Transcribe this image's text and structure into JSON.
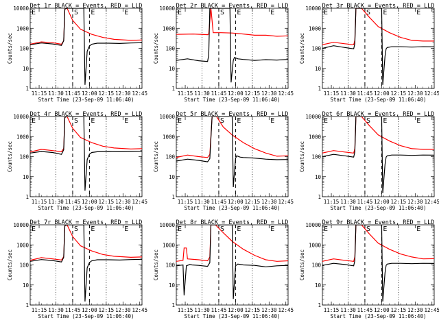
{
  "chart_data": {
    "type": "line",
    "yscale": "log",
    "ylim": [
      1,
      10000
    ],
    "xlim_minutes": [
      0,
      100
    ],
    "common": {
      "ylabel": "Counts/sec",
      "xlabel": "Start Time (23-Sep-09 11:06:40)",
      "x_tick_labels": [
        "11:15",
        "11:30",
        "11:45",
        "12:00",
        "12:15",
        "12:30",
        "12:45"
      ],
      "y_tick_labels": [
        "1",
        "10",
        "100",
        "1000",
        "10000"
      ],
      "marker_S": "S",
      "marker_E": "E",
      "grid": false
    },
    "series_colors": {
      "events": "#000000",
      "lld": "#ff0000"
    },
    "panels": [
      {
        "id": "1r",
        "title": "Det 1r BLACK = Events, RED = LLD",
        "events": [
          [
            0,
            150
          ],
          [
            10,
            185
          ],
          [
            20,
            165
          ],
          [
            28,
            140
          ],
          [
            30,
            240
          ],
          [
            31,
            9000
          ],
          [
            33,
            10000
          ],
          [
            40,
            10000
          ],
          [
            48,
            10000
          ],
          [
            49,
            1.5
          ],
          [
            51,
            70
          ],
          [
            52,
            100
          ],
          [
            53,
            130
          ],
          [
            55,
            160
          ],
          [
            60,
            180
          ],
          [
            70,
            180
          ],
          [
            80,
            175
          ],
          [
            90,
            185
          ],
          [
            100,
            190
          ]
        ],
        "lld": [
          [
            0,
            160
          ],
          [
            10,
            210
          ],
          [
            20,
            190
          ],
          [
            28,
            160
          ],
          [
            30,
            240
          ],
          [
            31,
            9000
          ],
          [
            33,
            10000
          ],
          [
            38,
            2500
          ],
          [
            45,
            900
          ],
          [
            55,
            500
          ],
          [
            65,
            350
          ],
          [
            75,
            280
          ],
          [
            90,
            250
          ],
          [
            100,
            260
          ]
        ]
      },
      {
        "id": "2r",
        "title": "Det 2r BLACK = Events, RED = LLD",
        "events": [
          [
            0,
            25
          ],
          [
            10,
            30
          ],
          [
            20,
            24
          ],
          [
            28,
            22
          ],
          [
            29,
            45
          ],
          [
            30,
            10000
          ],
          [
            32,
            10000
          ],
          [
            40,
            10000
          ],
          [
            48,
            10000
          ],
          [
            49,
            2
          ],
          [
            51,
            25
          ],
          [
            52,
            35
          ],
          [
            55,
            30
          ],
          [
            60,
            28
          ],
          [
            70,
            25
          ],
          [
            80,
            27
          ],
          [
            90,
            26
          ],
          [
            100,
            28
          ]
        ],
        "lld": [
          [
            0,
            500
          ],
          [
            15,
            520
          ],
          [
            28,
            480
          ],
          [
            29,
            520
          ],
          [
            31,
            10000
          ],
          [
            33,
            600
          ],
          [
            40,
            600
          ],
          [
            50,
            580
          ],
          [
            60,
            520
          ],
          [
            70,
            450
          ],
          [
            80,
            450
          ],
          [
            90,
            400
          ],
          [
            100,
            420
          ]
        ]
      },
      {
        "id": "3r",
        "title": "Det 3r BLACK = Events, RED = LLD",
        "events": [
          [
            0,
            100
          ],
          [
            10,
            135
          ],
          [
            20,
            110
          ],
          [
            28,
            95
          ],
          [
            29,
            170
          ],
          [
            30,
            10000
          ],
          [
            32,
            10000
          ],
          [
            40,
            10000
          ],
          [
            53,
            10000
          ],
          [
            54,
            1.5
          ],
          [
            56,
            40
          ],
          [
            57,
            95
          ],
          [
            58,
            110
          ],
          [
            62,
            120
          ],
          [
            70,
            120
          ],
          [
            80,
            115
          ],
          [
            90,
            120
          ],
          [
            100,
            118
          ]
        ],
        "lld": [
          [
            0,
            150
          ],
          [
            10,
            200
          ],
          [
            20,
            170
          ],
          [
            28,
            150
          ],
          [
            29,
            250
          ],
          [
            30,
            10000
          ],
          [
            35,
            10000
          ],
          [
            42,
            3500
          ],
          [
            50,
            1200
          ],
          [
            60,
            600
          ],
          [
            70,
            350
          ],
          [
            80,
            250
          ],
          [
            90,
            230
          ],
          [
            100,
            230
          ]
        ]
      },
      {
        "id": "4r",
        "title": "Det 4r BLACK = Events, RED = LLD",
        "events": [
          [
            0,
            150
          ],
          [
            10,
            180
          ],
          [
            20,
            160
          ],
          [
            28,
            130
          ],
          [
            30,
            220
          ],
          [
            31,
            9000
          ],
          [
            33,
            10000
          ],
          [
            40,
            10000
          ],
          [
            48,
            10000
          ],
          [
            49,
            2
          ],
          [
            51,
            70
          ],
          [
            52,
            100
          ],
          [
            53,
            130
          ],
          [
            55,
            160
          ],
          [
            60,
            175
          ],
          [
            70,
            180
          ],
          [
            80,
            175
          ],
          [
            90,
            180
          ],
          [
            100,
            185
          ]
        ],
        "lld": [
          [
            0,
            170
          ],
          [
            10,
            230
          ],
          [
            20,
            200
          ],
          [
            28,
            175
          ],
          [
            30,
            260
          ],
          [
            31,
            9000
          ],
          [
            33,
            10000
          ],
          [
            38,
            2600
          ],
          [
            45,
            900
          ],
          [
            55,
            500
          ],
          [
            65,
            330
          ],
          [
            75,
            270
          ],
          [
            90,
            240
          ],
          [
            100,
            250
          ]
        ]
      },
      {
        "id": "5r",
        "title": "Det 5r BLACK = Events, RED = LLD",
        "events": [
          [
            0,
            60
          ],
          [
            10,
            75
          ],
          [
            20,
            65
          ],
          [
            28,
            55
          ],
          [
            30,
            80
          ],
          [
            32,
            10000
          ],
          [
            34,
            10000
          ],
          [
            40,
            10000
          ],
          [
            50,
            10000
          ],
          [
            51,
            3
          ],
          [
            53,
            80
          ],
          [
            54,
            110
          ],
          [
            57,
            95
          ],
          [
            60,
            90
          ],
          [
            70,
            85
          ],
          [
            80,
            75
          ],
          [
            90,
            70
          ],
          [
            100,
            72
          ]
        ],
        "lld": [
          [
            0,
            90
          ],
          [
            10,
            120
          ],
          [
            20,
            100
          ],
          [
            28,
            90
          ],
          [
            30,
            130
          ],
          [
            32,
            10000
          ],
          [
            36,
            10000
          ],
          [
            42,
            3000
          ],
          [
            50,
            1200
          ],
          [
            60,
            500
          ],
          [
            70,
            250
          ],
          [
            80,
            150
          ],
          [
            90,
            105
          ],
          [
            100,
            110
          ]
        ]
      },
      {
        "id": "6r",
        "title": "Det 6r BLACK = Events, RED = LLD",
        "events": [
          [
            0,
            100
          ],
          [
            10,
            130
          ],
          [
            20,
            110
          ],
          [
            28,
            95
          ],
          [
            29,
            170
          ],
          [
            30,
            10000
          ],
          [
            32,
            10000
          ],
          [
            40,
            10000
          ],
          [
            53,
            10000
          ],
          [
            54,
            1.5
          ],
          [
            56,
            40
          ],
          [
            57,
            95
          ],
          [
            58,
            110
          ],
          [
            62,
            120
          ],
          [
            70,
            120
          ],
          [
            80,
            115
          ],
          [
            90,
            120
          ],
          [
            100,
            118
          ]
        ],
        "lld": [
          [
            0,
            150
          ],
          [
            10,
            200
          ],
          [
            20,
            170
          ],
          [
            28,
            150
          ],
          [
            29,
            250
          ],
          [
            30,
            10000
          ],
          [
            35,
            10000
          ],
          [
            42,
            3500
          ],
          [
            50,
            1200
          ],
          [
            60,
            600
          ],
          [
            70,
            350
          ],
          [
            80,
            250
          ],
          [
            90,
            230
          ],
          [
            100,
            230
          ]
        ]
      },
      {
        "id": "7r",
        "title": "Det 7r BLACK = Events, RED = LLD",
        "events": [
          [
            0,
            150
          ],
          [
            10,
            185
          ],
          [
            20,
            165
          ],
          [
            28,
            140
          ],
          [
            30,
            240
          ],
          [
            31,
            9000
          ],
          [
            33,
            10000
          ],
          [
            40,
            10000
          ],
          [
            48,
            10000
          ],
          [
            49,
            1.5
          ],
          [
            51,
            70
          ],
          [
            52,
            100
          ],
          [
            53,
            130
          ],
          [
            55,
            160
          ],
          [
            60,
            180
          ],
          [
            70,
            180
          ],
          [
            80,
            175
          ],
          [
            90,
            185
          ],
          [
            100,
            190
          ]
        ],
        "lld": [
          [
            0,
            170
          ],
          [
            10,
            230
          ],
          [
            20,
            200
          ],
          [
            28,
            175
          ],
          [
            30,
            260
          ],
          [
            31,
            9000
          ],
          [
            33,
            10000
          ],
          [
            38,
            2600
          ],
          [
            45,
            900
          ],
          [
            55,
            500
          ],
          [
            65,
            330
          ],
          [
            75,
            270
          ],
          [
            90,
            240
          ],
          [
            100,
            250
          ]
        ]
      },
      {
        "id": "8r",
        "title": "Det 8r BLACK = Events, RED = LLD",
        "events": [
          [
            0,
            90
          ],
          [
            6,
            100
          ],
          [
            7,
            3
          ],
          [
            9,
            90
          ],
          [
            12,
            105
          ],
          [
            14,
            100
          ],
          [
            20,
            95
          ],
          [
            28,
            85
          ],
          [
            30,
            130
          ],
          [
            31,
            10000
          ],
          [
            33,
            10000
          ],
          [
            40,
            10000
          ],
          [
            50,
            10000
          ],
          [
            51,
            2
          ],
          [
            53,
            90
          ],
          [
            55,
            110
          ],
          [
            60,
            100
          ],
          [
            70,
            95
          ],
          [
            80,
            80
          ],
          [
            90,
            90
          ],
          [
            100,
            95
          ]
        ],
        "lld": [
          [
            0,
            150
          ],
          [
            6,
            170
          ],
          [
            7,
            700
          ],
          [
            9,
            700
          ],
          [
            10,
            200
          ],
          [
            20,
            180
          ],
          [
            28,
            160
          ],
          [
            30,
            250
          ],
          [
            31,
            10000
          ],
          [
            35,
            10000
          ],
          [
            42,
            4000
          ],
          [
            50,
            1500
          ],
          [
            60,
            600
          ],
          [
            70,
            300
          ],
          [
            80,
            180
          ],
          [
            90,
            150
          ],
          [
            100,
            160
          ]
        ]
      },
      {
        "id": "9r",
        "title": "Det 9r BLACK = Events, RED = LLD",
        "events": [
          [
            0,
            95
          ],
          [
            10,
            120
          ],
          [
            20,
            105
          ],
          [
            28,
            90
          ],
          [
            29,
            160
          ],
          [
            30,
            10000
          ],
          [
            32,
            10000
          ],
          [
            40,
            10000
          ],
          [
            53,
            10000
          ],
          [
            54,
            1.5
          ],
          [
            56,
            40
          ],
          [
            57,
            95
          ],
          [
            58,
            110
          ],
          [
            62,
            120
          ],
          [
            70,
            120
          ],
          [
            80,
            115
          ],
          [
            90,
            120
          ],
          [
            100,
            118
          ]
        ],
        "lld": [
          [
            0,
            150
          ],
          [
            10,
            200
          ],
          [
            20,
            170
          ],
          [
            28,
            150
          ],
          [
            29,
            250
          ],
          [
            30,
            10000
          ],
          [
            35,
            10000
          ],
          [
            42,
            3500
          ],
          [
            50,
            1200
          ],
          [
            60,
            600
          ],
          [
            70,
            350
          ],
          [
            80,
            250
          ],
          [
            90,
            200
          ],
          [
            100,
            205
          ]
        ]
      }
    ]
  }
}
